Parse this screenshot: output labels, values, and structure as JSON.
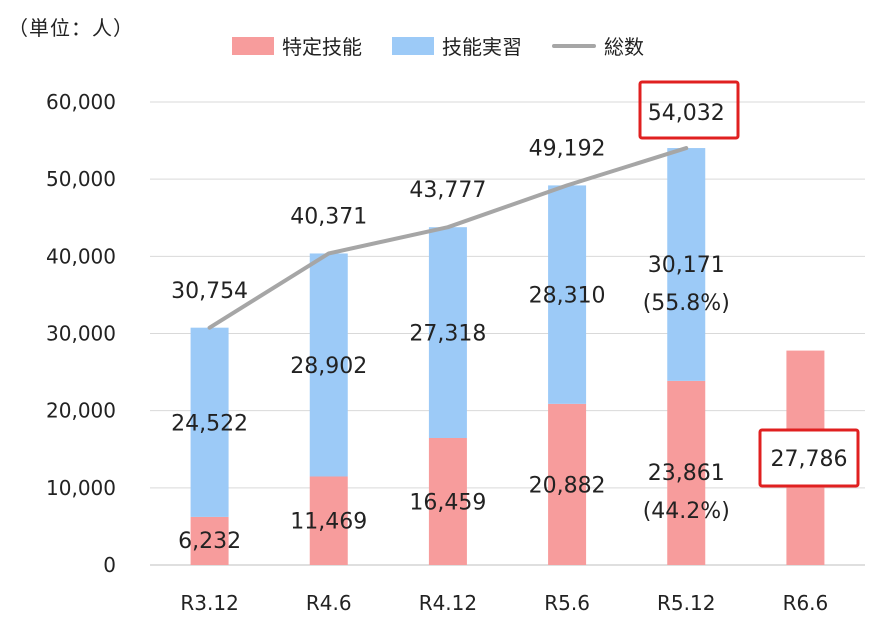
{
  "chart_data": {
    "type": "bar",
    "stacked": true,
    "unit_label": "（単位：人）",
    "categories": [
      "R3.12",
      "R4.6",
      "R4.12",
      "R5.6",
      "R5.12",
      "R6.6"
    ],
    "series": [
      {
        "name": "特定技能",
        "color": "#f79c9c",
        "values": [
          6232,
          11469,
          16459,
          20882,
          23861,
          27786
        ],
        "labels": [
          "6,232",
          "11,469",
          "16,459",
          "20,882",
          "23,861",
          "27,786"
        ]
      },
      {
        "name": "技能実習",
        "color": "#9ccaf7",
        "values": [
          24522,
          28902,
          27318,
          28310,
          30171,
          null
        ],
        "labels": [
          "24,522",
          "28,902",
          "27,318",
          "28,310",
          "30,171",
          ""
        ]
      }
    ],
    "total": {
      "name": "総数",
      "color": "#a6a6a6",
      "values": [
        30754,
        40371,
        43777,
        49192,
        54032
      ],
      "labels": [
        "30,754",
        "40,371",
        "43,777",
        "49,192",
        "54,032"
      ]
    },
    "percent_labels": {
      "R5.12_bottom": "(44.2%)",
      "R5.12_top": "(55.8%)"
    },
    "highlighted": [
      "54,032",
      "27,786"
    ],
    "highlight_color": "#e02020",
    "ylim": [
      0,
      60000
    ],
    "yticks": [
      "0",
      "10,000",
      "20,000",
      "30,000",
      "40,000",
      "50,000",
      "60,000"
    ],
    "grid": true,
    "legend_position": "top"
  }
}
